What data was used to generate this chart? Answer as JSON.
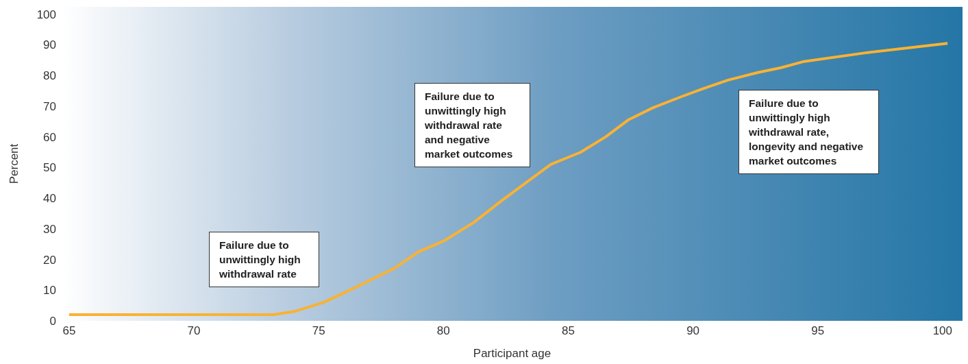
{
  "chart_data": {
    "type": "line",
    "xlabel": "Participant age",
    "ylabel": "Percent",
    "x": [
      65,
      73.2,
      74,
      75.2,
      76.5,
      78,
      79,
      80,
      81.2,
      82.3,
      83.3,
      84.3,
      85.5,
      86.5,
      87.4,
      88.4,
      89.5,
      90.5,
      91.4,
      92.6,
      93.5,
      94.4,
      97,
      100.2
    ],
    "series": [
      {
        "color": "#f9b233",
        "values": [
          2,
          2,
          3,
          6,
          11,
          17,
          22.5,
          26,
          32,
          39,
          45,
          51,
          55,
          60,
          65.5,
          69.5,
          73,
          76,
          78.5,
          81,
          82.5,
          84.5,
          87.5,
          90.5
        ]
      }
    ],
    "xlim": [
      64.7,
      100.8
    ],
    "xticks": [
      65,
      70,
      75,
      80,
      85,
      90,
      95,
      100
    ],
    "ylim": [
      0,
      102.4
    ],
    "yticks": [
      0,
      10,
      20,
      30,
      40,
      50,
      60,
      70,
      80,
      90,
      100
    ],
    "grid": false,
    "legend": false,
    "marker": "none",
    "line_style": "solid",
    "annotations": [
      "Failure due to unwittingly high withdrawal rate",
      "Failure due to unwittingly high withdrawal rate and negative market outcomes",
      "Failure due to unwittingly high withdrawal rate, longevity and negative market outcomes"
    ]
  }
}
